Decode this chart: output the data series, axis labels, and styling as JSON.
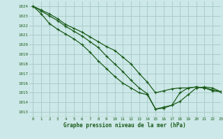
{
  "bg_color": "#cde8e8",
  "grid_color": "#aacccc",
  "line_color": "#1a5c1a",
  "xlabel": "Graphe pression niveau de la mer (hPa)",
  "ylim": [
    1012.5,
    1024.5
  ],
  "xlim": [
    -0.5,
    23
  ],
  "yticks": [
    1013,
    1014,
    1015,
    1016,
    1017,
    1018,
    1019,
    1020,
    1021,
    1022,
    1023,
    1024
  ],
  "xticks": [
    0,
    1,
    2,
    3,
    4,
    5,
    6,
    7,
    8,
    9,
    10,
    11,
    12,
    13,
    14,
    15,
    16,
    17,
    18,
    19,
    20,
    21,
    22,
    23
  ],
  "series": [
    [
      1024.0,
      1023.6,
      1023.2,
      1022.7,
      1022.1,
      1021.7,
      1021.3,
      1020.8,
      1020.3,
      1019.8,
      1019.4,
      1018.7,
      1018.0,
      1017.0,
      1016.1,
      1015.0,
      1015.2,
      1015.4,
      1015.5,
      1015.5,
      1015.6,
      1015.5,
      1015.2,
      1015.1
    ],
    [
      1024.0,
      1023.5,
      1023.0,
      1022.5,
      1021.9,
      1021.4,
      1020.9,
      1020.3,
      1019.7,
      1018.8,
      1018.0,
      1017.2,
      1016.3,
      1015.5,
      1014.9,
      1013.3,
      1013.5,
      1013.7,
      1015.0,
      1015.5,
      1015.6,
      1015.5,
      1015.3,
      1015.1
    ],
    [
      1024.0,
      1023.2,
      1022.2,
      1021.6,
      1021.1,
      1020.6,
      1020.0,
      1019.2,
      1018.3,
      1017.5,
      1016.7,
      1016.0,
      1015.5,
      1015.0,
      1014.8,
      1013.3,
      1013.4,
      1013.7,
      1014.1,
      1014.8,
      1015.5,
      1015.6,
      1015.5,
      1015.1
    ]
  ]
}
